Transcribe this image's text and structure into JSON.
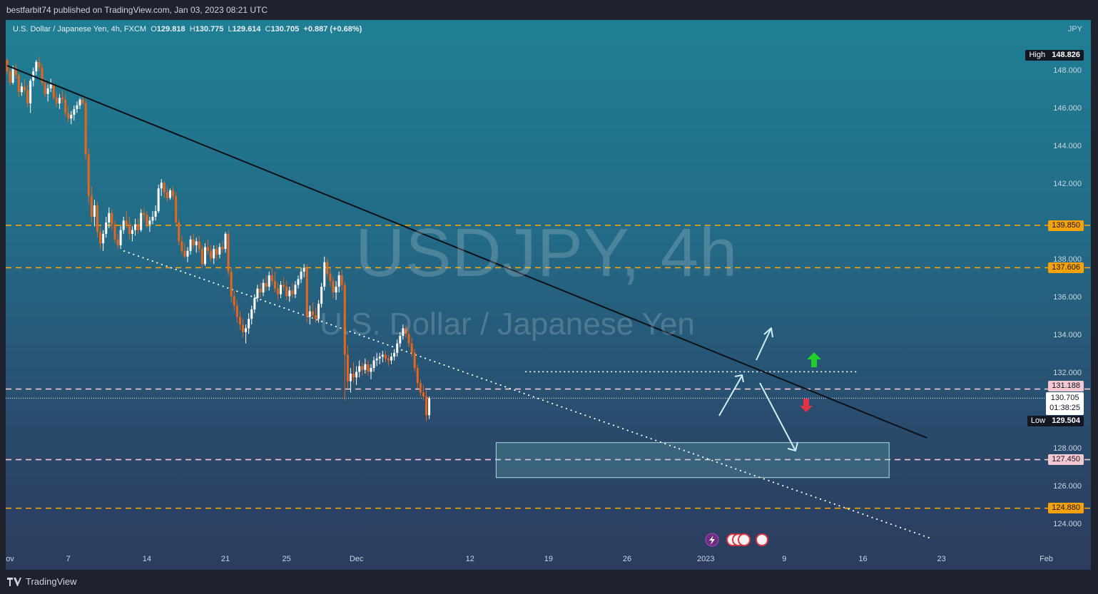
{
  "publish_line": "bestfarbit74 published on TradingView.com, Jan 03, 2023 08:21 UTC",
  "brand": "TradingView",
  "header": {
    "symbol": "U.S. Dollar / Japanese Yen, 4h, FXCM",
    "o_label": "O",
    "o_value": "129.818",
    "h_label": "H",
    "h_value": "130.775",
    "l_label": "L",
    "l_value": "129.614",
    "c_label": "C",
    "c_value": "130.705",
    "change": "+0.887 (+0.68%)"
  },
  "currency": "JPY",
  "watermark": {
    "ticker": "USDJPY, 4h",
    "name": "U.S. Dollar / Japanese Yen"
  },
  "markers": {
    "high_label": "High",
    "high_value": "148.826",
    "low_label": "Low",
    "low_value": "129.504",
    "last_price": "130.705",
    "countdown": "01:38:25"
  },
  "levels": [
    "139.850",
    "137.606",
    "131.188",
    "127.450",
    "124.880"
  ],
  "colors": {
    "candle": "#e8651c",
    "orange_level": "#f5a20a",
    "pink_level": "#f3c8d0",
    "trendline": "#0d1117",
    "arrow_cyan": "#cdeff5",
    "up_arrow": "#1fd12a",
    "down_arrow": "#e03345"
  },
  "chart_data": {
    "type": "candlestick",
    "title": "USDJPY, 4h",
    "xlabel": "",
    "ylabel": "",
    "ylim": [
      123.0,
      151.0
    ],
    "y_ticks": [
      "148.000",
      "146.000",
      "144.000",
      "142.000",
      "138.000",
      "136.000",
      "134.000",
      "132.000",
      "128.000",
      "126.000",
      "124.000"
    ],
    "x_ticks": [
      "ov",
      "7",
      "14",
      "21",
      "25",
      "Dec",
      "12",
      "19",
      "26",
      "2023",
      "9",
      "16",
      "23",
      "Feb"
    ],
    "x_tick_slots": [
      0,
      21,
      48,
      75,
      96,
      120,
      159,
      186,
      213,
      240,
      267,
      294,
      321,
      357
    ],
    "horizontal_levels": [
      {
        "value": 139.85,
        "style": "orange-dashed"
      },
      {
        "value": 137.606,
        "style": "orange-dashed"
      },
      {
        "value": 131.188,
        "style": "pink-dashed"
      },
      {
        "value": 127.45,
        "style": "pink-dashed"
      },
      {
        "value": 124.88,
        "style": "orange-dashed"
      }
    ],
    "resistance_dotted": 132.1,
    "last_close": 130.705,
    "descending_trendline": [
      [
        0,
        148.3
      ],
      [
        316,
        128.6
      ]
    ],
    "lower_channel_dotted": [
      [
        40,
        138.5
      ],
      [
        317,
        123.3
      ]
    ],
    "target_zone": {
      "x": [
        168,
        303
      ],
      "y": [
        126.5,
        128.35
      ]
    },
    "ohlc": [
      [
        148.6,
        148.7,
        147.8,
        148.0
      ],
      [
        148.0,
        148.2,
        147.2,
        147.4
      ],
      [
        147.4,
        148.3,
        147.3,
        148.2
      ],
      [
        148.2,
        148.4,
        147.6,
        147.8
      ],
      [
        147.8,
        147.9,
        146.6,
        146.9
      ],
      [
        146.9,
        147.4,
        146.7,
        147.2
      ],
      [
        147.2,
        147.6,
        146.8,
        147.0
      ],
      [
        147.0,
        147.3,
        146.1,
        146.3
      ],
      [
        146.3,
        147.6,
        145.8,
        147.5
      ],
      [
        147.5,
        148.2,
        147.2,
        148.0
      ],
      [
        148.0,
        148.6,
        147.8,
        148.5
      ],
      [
        148.5,
        148.8,
        148.0,
        148.2
      ],
      [
        148.2,
        148.4,
        147.2,
        147.4
      ],
      [
        147.4,
        147.6,
        146.6,
        146.8
      ],
      [
        146.8,
        147.3,
        146.4,
        147.1
      ],
      [
        147.1,
        147.6,
        146.9,
        147.3
      ],
      [
        147.3,
        147.4,
        146.5,
        146.6
      ],
      [
        146.6,
        146.9,
        146.1,
        146.3
      ],
      [
        146.3,
        146.8,
        146.0,
        146.6
      ],
      [
        146.6,
        147.0,
        146.3,
        146.5
      ],
      [
        146.5,
        146.8,
        145.6,
        145.8
      ],
      [
        145.8,
        146.2,
        145.3,
        145.5
      ],
      [
        145.5,
        145.9,
        145.2,
        145.7
      ],
      [
        145.7,
        146.2,
        145.4,
        146.0
      ],
      [
        146.0,
        146.4,
        145.8,
        146.2
      ],
      [
        146.2,
        146.6,
        146.0,
        146.5
      ],
      [
        146.5,
        146.7,
        146.2,
        146.3
      ],
      [
        146.3,
        146.5,
        143.3,
        143.6
      ],
      [
        143.6,
        143.9,
        141.0,
        141.4
      ],
      [
        141.4,
        141.9,
        140.0,
        140.3
      ],
      [
        140.3,
        141.2,
        139.8,
        140.9
      ],
      [
        140.9,
        141.1,
        139.2,
        139.5
      ],
      [
        139.5,
        139.8,
        138.6,
        138.9
      ],
      [
        138.9,
        139.6,
        138.5,
        139.4
      ],
      [
        139.4,
        140.3,
        139.2,
        140.0
      ],
      [
        140.0,
        140.8,
        139.7,
        140.5
      ],
      [
        140.5,
        140.7,
        139.6,
        139.9
      ],
      [
        139.9,
        140.1,
        138.9,
        139.1
      ],
      [
        139.1,
        139.4,
        138.6,
        138.8
      ],
      [
        138.8,
        139.8,
        138.6,
        139.6
      ],
      [
        139.6,
        140.3,
        139.4,
        140.1
      ],
      [
        140.1,
        140.6,
        139.7,
        139.9
      ],
      [
        139.9,
        140.3,
        139.1,
        139.4
      ],
      [
        139.4,
        139.8,
        139.0,
        139.6
      ],
      [
        139.6,
        140.2,
        139.3,
        139.9
      ],
      [
        139.9,
        140.2,
        139.4,
        139.6
      ],
      [
        139.6,
        140.7,
        139.5,
        140.5
      ],
      [
        140.5,
        140.8,
        140.1,
        140.4
      ],
      [
        140.4,
        140.6,
        139.7,
        139.9
      ],
      [
        139.9,
        140.3,
        139.5,
        140.1
      ],
      [
        140.1,
        140.6,
        139.9,
        140.3
      ],
      [
        140.3,
        140.9,
        140.1,
        140.6
      ],
      [
        140.6,
        142.0,
        140.5,
        141.8
      ],
      [
        141.8,
        142.3,
        141.4,
        142.1
      ],
      [
        142.1,
        142.2,
        141.3,
        141.6
      ],
      [
        141.6,
        141.9,
        141.1,
        141.3
      ],
      [
        141.3,
        141.8,
        141.2,
        141.7
      ],
      [
        141.7,
        141.9,
        141.2,
        141.4
      ],
      [
        141.4,
        141.6,
        139.8,
        140.0
      ],
      [
        140.0,
        140.2,
        138.8,
        139.0
      ],
      [
        139.0,
        139.3,
        138.3,
        138.5
      ],
      [
        138.5,
        138.9,
        138.1,
        138.2
      ],
      [
        138.2,
        138.7,
        137.9,
        138.5
      ],
      [
        138.5,
        139.3,
        138.3,
        139.1
      ],
      [
        139.1,
        139.4,
        138.6,
        138.8
      ],
      [
        138.8,
        139.2,
        138.4,
        139.0
      ],
      [
        139.0,
        139.3,
        138.4,
        138.6
      ],
      [
        138.6,
        138.8,
        137.6,
        137.8
      ],
      [
        137.8,
        138.9,
        137.7,
        138.7
      ],
      [
        138.7,
        139.1,
        138.3,
        138.5
      ],
      [
        138.5,
        138.8,
        137.9,
        138.1
      ],
      [
        138.1,
        138.8,
        137.8,
        138.6
      ],
      [
        138.6,
        138.8,
        138.0,
        138.3
      ],
      [
        138.3,
        138.9,
        138.1,
        138.7
      ],
      [
        138.7,
        139.0,
        138.4,
        138.6
      ],
      [
        138.6,
        139.5,
        138.4,
        139.4
      ],
      [
        139.4,
        139.6,
        137.2,
        137.4
      ],
      [
        137.4,
        137.6,
        135.8,
        136.1
      ],
      [
        136.1,
        136.4,
        135.3,
        135.6
      ],
      [
        135.6,
        135.9,
        134.7,
        135.0
      ],
      [
        135.0,
        135.3,
        134.3,
        134.6
      ],
      [
        134.6,
        134.9,
        133.9,
        134.2
      ],
      [
        134.2,
        134.6,
        133.6,
        134.4
      ],
      [
        134.4,
        135.2,
        134.1,
        134.9
      ],
      [
        134.9,
        135.6,
        134.6,
        135.4
      ],
      [
        135.4,
        136.2,
        135.2,
        136.0
      ],
      [
        136.0,
        136.7,
        135.8,
        136.5
      ],
      [
        136.5,
        136.8,
        136.0,
        136.3
      ],
      [
        136.3,
        137.0,
        136.1,
        136.8
      ],
      [
        136.8,
        137.2,
        136.4,
        136.6
      ],
      [
        136.6,
        137.4,
        136.4,
        137.2
      ],
      [
        137.2,
        137.6,
        136.7,
        136.9
      ],
      [
        136.9,
        137.4,
        136.3,
        136.5
      ],
      [
        136.5,
        136.8,
        135.9,
        136.2
      ],
      [
        136.2,
        136.9,
        136.0,
        136.7
      ],
      [
        136.7,
        137.1,
        136.4,
        136.6
      ],
      [
        136.6,
        136.9,
        135.9,
        136.1
      ],
      [
        136.1,
        136.6,
        135.8,
        136.4
      ],
      [
        136.4,
        136.8,
        136.0,
        136.2
      ],
      [
        136.2,
        136.9,
        136.0,
        136.7
      ],
      [
        136.7,
        137.2,
        136.5,
        137.0
      ],
      [
        137.0,
        137.6,
        136.8,
        137.4
      ],
      [
        137.4,
        137.8,
        137.1,
        137.6
      ],
      [
        137.6,
        137.8,
        134.7,
        135.0
      ],
      [
        135.0,
        135.6,
        134.6,
        135.3
      ],
      [
        135.3,
        135.8,
        134.9,
        135.1
      ],
      [
        135.1,
        135.5,
        134.7,
        134.9
      ],
      [
        134.9,
        135.9,
        134.7,
        135.7
      ],
      [
        135.7,
        136.8,
        135.5,
        136.6
      ],
      [
        136.6,
        138.2,
        136.4,
        137.9
      ],
      [
        137.9,
        138.1,
        137.1,
        137.3
      ],
      [
        137.3,
        137.6,
        136.6,
        136.9
      ],
      [
        136.9,
        137.1,
        136.0,
        136.3
      ],
      [
        136.3,
        136.9,
        135.9,
        136.6
      ],
      [
        136.6,
        137.4,
        136.3,
        137.2
      ],
      [
        137.2,
        137.5,
        136.4,
        136.7
      ],
      [
        136.7,
        136.9,
        130.6,
        133.0
      ],
      [
        133.0,
        133.5,
        131.2,
        131.6
      ],
      [
        131.6,
        132.3,
        131.0,
        132.0
      ],
      [
        132.0,
        132.6,
        131.5,
        131.8
      ],
      [
        131.8,
        132.4,
        131.4,
        132.1
      ],
      [
        132.1,
        132.7,
        131.8,
        132.4
      ],
      [
        132.4,
        132.6,
        131.9,
        132.2
      ],
      [
        132.2,
        132.8,
        132.0,
        132.5
      ],
      [
        132.5,
        132.7,
        131.9,
        132.1
      ],
      [
        132.1,
        132.5,
        131.7,
        132.3
      ],
      [
        132.3,
        132.9,
        132.1,
        132.7
      ],
      [
        132.7,
        133.1,
        132.4,
        132.8
      ],
      [
        132.8,
        133.1,
        132.5,
        132.9
      ],
      [
        132.9,
        133.2,
        132.6,
        133.0
      ],
      [
        133.0,
        133.2,
        132.6,
        132.8
      ],
      [
        132.8,
        133.0,
        132.4,
        132.7
      ],
      [
        132.7,
        133.1,
        132.5,
        132.9
      ],
      [
        132.9,
        133.3,
        132.7,
        133.1
      ],
      [
        133.1,
        133.8,
        132.9,
        133.6
      ],
      [
        133.6,
        134.2,
        133.4,
        134.0
      ],
      [
        134.0,
        134.6,
        133.8,
        134.4
      ],
      [
        134.4,
        134.6,
        133.9,
        134.1
      ],
      [
        134.1,
        134.3,
        133.4,
        133.6
      ],
      [
        133.6,
        133.9,
        132.9,
        133.1
      ],
      [
        133.1,
        133.3,
        132.1,
        132.3
      ],
      [
        132.3,
        132.5,
        131.2,
        131.5
      ],
      [
        131.5,
        131.7,
        130.8,
        131.0
      ],
      [
        131.0,
        131.4,
        130.6,
        130.8
      ],
      [
        130.8,
        131.1,
        129.5,
        129.8
      ],
      [
        129.8,
        130.8,
        129.6,
        130.7
      ]
    ]
  }
}
